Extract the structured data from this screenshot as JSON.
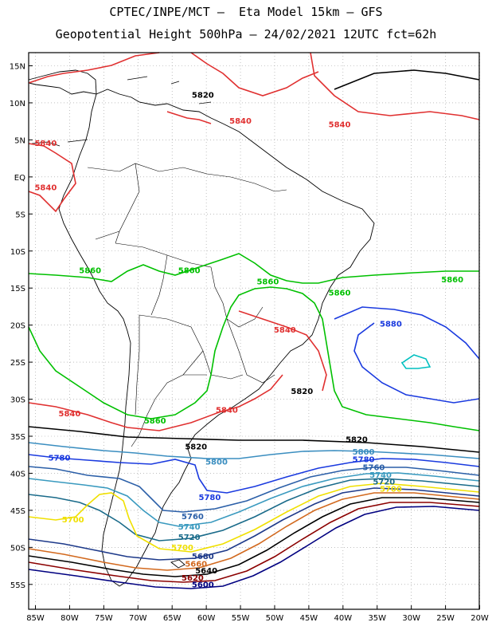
{
  "title_line1": "CPTEC/INPE/MCT –  Eta Model 15km – GFS",
  "title_line2": "Geopotential Height 500hPa – 24/02/2021 12UTC fct=62h",
  "lat_labels": [
    "15N",
    "10N",
    "5N",
    "EQ",
    "5S",
    "10S",
    "15S",
    "20S",
    "25S",
    "30S",
    "35S",
    "40S",
    "45S",
    "50S",
    "55S"
  ],
  "lon_labels": [
    "85W",
    "80W",
    "75W",
    "70W",
    "65W",
    "60W",
    "55W",
    "50W",
    "45W",
    "40W",
    "35W",
    "30W",
    "25W",
    "20W"
  ],
  "colors": {
    "c5580": "#000080",
    "c5620": "#8b0000",
    "c5640": "#000000",
    "c5660": "#d2691e",
    "c5680": "#1e3a8a",
    "c5700": "#f0e000",
    "c5720": "#1a6b8a",
    "c5740": "#3a9abf",
    "c5760": "#2b5fa8",
    "c5780": "#1a3adf",
    "c5800": "#3b8ec0",
    "c5820": "#000000",
    "c5840": "#e03030",
    "c5860": "#00c000",
    "c5880": "#1a3adf",
    "c5900": "#00c0c0"
  },
  "contour_labels": [
    {
      "text": "5820",
      "lon": -60.5,
      "lat": 10.7,
      "color": "c5820"
    },
    {
      "text": "5840",
      "lon": -55.0,
      "lat": 7.2,
      "color": "c5840"
    },
    {
      "text": "5840",
      "lon": -40.5,
      "lat": 6.7,
      "color": "c5840"
    },
    {
      "text": "5840",
      "lon": -83.5,
      "lat": 4.2,
      "color": "c5840"
    },
    {
      "text": "5840",
      "lon": -83.5,
      "lat": -1.8,
      "color": "c5840"
    },
    {
      "text": "5860",
      "lon": -77.0,
      "lat": -13.0,
      "color": "c5860"
    },
    {
      "text": "5860",
      "lon": -62.5,
      "lat": -13.0,
      "color": "c5860"
    },
    {
      "text": "5860",
      "lon": -51.0,
      "lat": -14.5,
      "color": "c5860"
    },
    {
      "text": "5860",
      "lon": -40.5,
      "lat": -16.0,
      "color": "c5860"
    },
    {
      "text": "5860",
      "lon": -24.0,
      "lat": -14.2,
      "color": "c5860"
    },
    {
      "text": "5840",
      "lon": -48.5,
      "lat": -21.0,
      "color": "c5840"
    },
    {
      "text": "5880",
      "lon": -33.0,
      "lat": -20.2,
      "color": "c5880"
    },
    {
      "text": "5820",
      "lon": -46.0,
      "lat": -29.3,
      "color": "c5820"
    },
    {
      "text": "5840",
      "lon": -80.0,
      "lat": -32.3,
      "color": "c5840"
    },
    {
      "text": "5840",
      "lon": -57.0,
      "lat": -31.8,
      "color": "c5840"
    },
    {
      "text": "5860",
      "lon": -67.5,
      "lat": -33.3,
      "color": "c5860"
    },
    {
      "text": "5820",
      "lon": -61.5,
      "lat": -36.8,
      "color": "c5820"
    },
    {
      "text": "5820",
      "lon": -38.0,
      "lat": -35.8,
      "color": "c5820"
    },
    {
      "text": "5780",
      "lon": -81.5,
      "lat": -38.3,
      "color": "c5780"
    },
    {
      "text": "5800",
      "lon": -58.5,
      "lat": -38.8,
      "color": "c5800"
    },
    {
      "text": "5800",
      "lon": -37.0,
      "lat": -37.5,
      "color": "c5800"
    },
    {
      "text": "5780",
      "lon": -37.0,
      "lat": -38.5,
      "color": "c5780"
    },
    {
      "text": "5760",
      "lon": -35.5,
      "lat": -39.6,
      "color": "c5760"
    },
    {
      "text": "5740",
      "lon": -34.5,
      "lat": -40.6,
      "color": "c5740"
    },
    {
      "text": "5720",
      "lon": -34.0,
      "lat": -41.5,
      "color": "c5720"
    },
    {
      "text": "5700",
      "lon": -33.0,
      "lat": -42.5,
      "color": "c5700"
    },
    {
      "text": "5780",
      "lon": -59.5,
      "lat": -43.6,
      "color": "c5780"
    },
    {
      "text": "5700",
      "lon": -79.5,
      "lat": -46.6,
      "color": "c5700"
    },
    {
      "text": "5760",
      "lon": -62.0,
      "lat": -46.2,
      "color": "c5760"
    },
    {
      "text": "5740",
      "lon": -62.5,
      "lat": -47.6,
      "color": "c5740"
    },
    {
      "text": "5720",
      "lon": -62.5,
      "lat": -49.0,
      "color": "c5720"
    },
    {
      "text": "5700",
      "lon": -63.5,
      "lat": -50.4,
      "color": "c5700"
    },
    {
      "text": "5680",
      "lon": -60.5,
      "lat": -51.6,
      "color": "c5680"
    },
    {
      "text": "5660",
      "lon": -61.5,
      "lat": -52.6,
      "color": "c5660"
    },
    {
      "text": "5640",
      "lon": -60.0,
      "lat": -53.5,
      "color": "c5640"
    },
    {
      "text": "5620",
      "lon": -62.0,
      "lat": -54.5,
      "color": "c5620"
    },
    {
      "text": "5600",
      "lon": -60.5,
      "lat": -55.4,
      "color": "c5580"
    }
  ]
}
